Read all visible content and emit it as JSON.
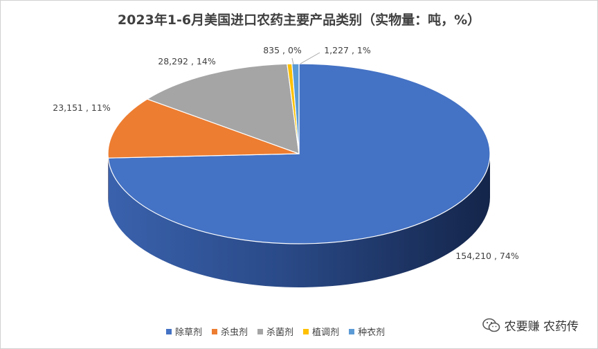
{
  "title": "2023年1-6月美国进口农药主要产品类别（实物量：吨，%）",
  "chart_data": {
    "type": "pie",
    "title": "2023年1-6月美国进口农药主要产品类别（实物量：吨，%）",
    "slices": [
      {
        "name": "除草剂",
        "value": 154210,
        "percent": 74,
        "label": "154,210 , 74%",
        "color": "#4472C4"
      },
      {
        "name": "杀虫剂",
        "value": 23151,
        "percent": 11,
        "label": "23,151 , 11%",
        "color": "#ED7D31"
      },
      {
        "name": "杀菌剂",
        "value": 28292,
        "percent": 14,
        "label": "28,292 , 14%",
        "color": "#A5A5A5"
      },
      {
        "name": "植调剂",
        "value": 835,
        "percent": 0,
        "label": "835 , 0%",
        "color": "#FFC000"
      },
      {
        "name": "种衣剂",
        "value": 1227,
        "percent": 1,
        "label": "1,227 , 1%",
        "color": "#5B9BD5"
      }
    ],
    "legend_position": "bottom"
  },
  "legend": [
    "除草剂",
    "杀虫剂",
    "杀菌剂",
    "植调剂",
    "种衣剂"
  ],
  "watermark": "农要赚 农药传"
}
